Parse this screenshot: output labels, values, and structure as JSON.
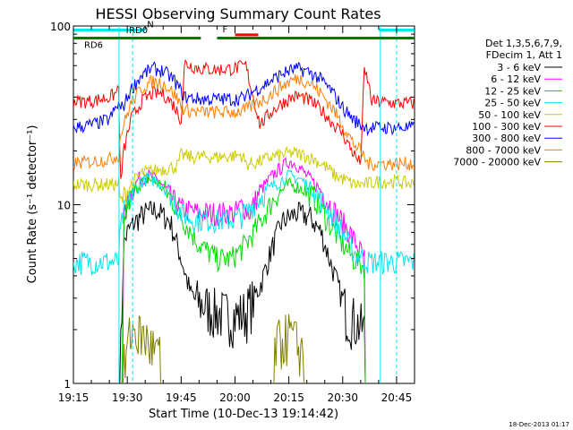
{
  "chart_data": {
    "type": "line",
    "title": "HESSI Observing Summary Count Rates",
    "xlabel": "Start Time (10-Dec-13 19:14:42)",
    "ylabel": "Count Rate (s⁻¹ detector⁻¹)",
    "yscale": "log",
    "xlim_minutes_after_1915": [
      0,
      95
    ],
    "ylim": [
      1,
      100
    ],
    "grid": false,
    "legend_position": "right",
    "x_tick_labels": [
      "19:15",
      "19:30",
      "19:45",
      "20:00",
      "20:15",
      "20:30",
      "20:45"
    ],
    "x_tick_minutes": [
      0,
      15,
      30,
      45,
      60,
      75,
      90
    ],
    "y_tick_labels": [
      "1",
      "10",
      "100"
    ],
    "y_tick_values": [
      1,
      10,
      100
    ],
    "legend_header": [
      "Det 1,3,5,6,7,9,",
      "FDecim 1, Att 1"
    ],
    "timestamp": "18-Dec-2013 01:17",
    "flags": [
      {
        "label": "N",
        "color": "#00e5ee",
        "y": 90,
        "segments": [
          [
            0,
            20
          ],
          [
            85,
            95
          ]
        ]
      },
      {
        "label": "RD6",
        "color": "#007a00",
        "y": 70,
        "segments": [
          [
            0,
            35.5
          ],
          [
            40,
            95
          ]
        ]
      },
      {
        "label": "RD0",
        "color": "#007a00",
        "y": 76
      },
      {
        "label": "F",
        "color": "#ff0000",
        "y": 78,
        "segments": [
          [
            45,
            51.5
          ]
        ]
      }
    ],
    "night_markers_minutes": [
      12.7,
      16.5,
      85.5,
      90
    ],
    "series": [
      {
        "name": "3 - 6 keV",
        "color": "#000000",
        "pts": [
          [
            0,
            0.01
          ],
          [
            12.5,
            0.01
          ],
          [
            13,
            1.1
          ],
          [
            14,
            6
          ],
          [
            15,
            7
          ],
          [
            17,
            8
          ],
          [
            20,
            9
          ],
          [
            23,
            9.4
          ],
          [
            27,
            8
          ],
          [
            30,
            5
          ],
          [
            33,
            3
          ],
          [
            40,
            2.5
          ],
          [
            45,
            2.4
          ],
          [
            48,
            2.5
          ],
          [
            52,
            3.5
          ],
          [
            55,
            5.5
          ],
          [
            58,
            8
          ],
          [
            62,
            9
          ],
          [
            66,
            8.5
          ],
          [
            69,
            7
          ],
          [
            72,
            4.5
          ],
          [
            76,
            2.5
          ],
          [
            81,
            2
          ],
          [
            82,
            0.01
          ],
          [
            95,
            0.01
          ]
        ]
      },
      {
        "name": "6 - 12 keV",
        "color": "#ff00ff",
        "pts": [
          [
            0,
            0.01
          ],
          [
            13,
            0.01
          ],
          [
            14,
            8
          ],
          [
            15,
            10
          ],
          [
            18,
            14
          ],
          [
            21,
            14.5
          ],
          [
            24,
            13.5
          ],
          [
            27,
            11
          ],
          [
            30,
            9.5
          ],
          [
            35,
            9
          ],
          [
            40,
            9
          ],
          [
            45,
            9
          ],
          [
            47,
            10
          ],
          [
            49,
            9
          ],
          [
            52,
            12
          ],
          [
            56,
            15
          ],
          [
            60,
            17.5
          ],
          [
            62,
            17
          ],
          [
            65,
            14.5
          ],
          [
            69,
            12
          ],
          [
            73,
            9
          ],
          [
            77,
            7
          ],
          [
            81,
            5
          ],
          [
            82,
            0.01
          ],
          [
            95,
            0.01
          ]
        ]
      },
      {
        "name": "12 - 25 keV",
        "color": "#00dd00",
        "pts": [
          [
            0,
            0.01
          ],
          [
            13,
            0.01
          ],
          [
            14,
            8
          ],
          [
            15,
            10
          ],
          [
            18,
            13
          ],
          [
            21,
            14
          ],
          [
            24,
            13
          ],
          [
            27,
            11
          ],
          [
            31,
            8
          ],
          [
            35,
            6
          ],
          [
            40,
            5
          ],
          [
            44,
            5
          ],
          [
            48,
            6
          ],
          [
            52,
            8
          ],
          [
            56,
            11
          ],
          [
            60,
            13
          ],
          [
            63,
            12.5
          ],
          [
            67,
            11
          ],
          [
            71,
            8
          ],
          [
            75,
            6
          ],
          [
            78,
            5
          ],
          [
            81,
            4.5
          ],
          [
            82,
            0.01
          ],
          [
            95,
            0.01
          ]
        ]
      },
      {
        "name": "25 - 50 keV",
        "color": "#00e5ee",
        "pts": [
          [
            0,
            4.8
          ],
          [
            10,
            4.8
          ],
          [
            12.7,
            4.8
          ],
          [
            13,
            7
          ],
          [
            14,
            9
          ],
          [
            16,
            11
          ],
          [
            19,
            13.5
          ],
          [
            21,
            14.2
          ],
          [
            24,
            13.3
          ],
          [
            27,
            11.5
          ],
          [
            30,
            9
          ],
          [
            33,
            8.3
          ],
          [
            40,
            8.2
          ],
          [
            45,
            8.3
          ],
          [
            48,
            9
          ],
          [
            52,
            11
          ],
          [
            56,
            13
          ],
          [
            60,
            14.5
          ],
          [
            63,
            14
          ],
          [
            67,
            12
          ],
          [
            71,
            9.5
          ],
          [
            75,
            7
          ],
          [
            78,
            5.5
          ],
          [
            81,
            5
          ],
          [
            82,
            4.8
          ],
          [
            95,
            4.8
          ]
        ]
      },
      {
        "name": "50 - 100 keV",
        "color": "#cccc00",
        "pts": [
          [
            0,
            13
          ],
          [
            11,
            13
          ],
          [
            12.7,
            13
          ],
          [
            13,
            10
          ],
          [
            14,
            11
          ],
          [
            16,
            13
          ],
          [
            19,
            15
          ],
          [
            22,
            15.5
          ],
          [
            26,
            16
          ],
          [
            29,
            16.5
          ],
          [
            30,
            19
          ],
          [
            33,
            18.5
          ],
          [
            40,
            18.5
          ],
          [
            45,
            18.8
          ],
          [
            47,
            19
          ],
          [
            48,
            17
          ],
          [
            50,
            17
          ],
          [
            52,
            17.5
          ],
          [
            55,
            18.5
          ],
          [
            58,
            19
          ],
          [
            61,
            19.5
          ],
          [
            64,
            19
          ],
          [
            67,
            18
          ],
          [
            70,
            16.5
          ],
          [
            73,
            14.5
          ],
          [
            75,
            14
          ],
          [
            78,
            13
          ],
          [
            81,
            13
          ],
          [
            85,
            13.5
          ],
          [
            90,
            13.5
          ],
          [
            95,
            13
          ]
        ]
      },
      {
        "name": "100 - 300 keV",
        "color": "#ff0000",
        "pts": [
          [
            0,
            38
          ],
          [
            5,
            38
          ],
          [
            10,
            40
          ],
          [
            12,
            42
          ],
          [
            12.7,
            50
          ],
          [
            13,
            12
          ],
          [
            14,
            20
          ],
          [
            16,
            30
          ],
          [
            19,
            38
          ],
          [
            22,
            42
          ],
          [
            25,
            42
          ],
          [
            28,
            36
          ],
          [
            30,
            30
          ],
          [
            31,
            62
          ],
          [
            35,
            58
          ],
          [
            40,
            57
          ],
          [
            45,
            58
          ],
          [
            48,
            60
          ],
          [
            52,
            28
          ],
          [
            55,
            33
          ],
          [
            58,
            37
          ],
          [
            61,
            40
          ],
          [
            63,
            40.5
          ],
          [
            66,
            38
          ],
          [
            69,
            34
          ],
          [
            72,
            29
          ],
          [
            75,
            25
          ],
          [
            77,
            21
          ],
          [
            79,
            18
          ],
          [
            80,
            17
          ],
          [
            81,
            55
          ],
          [
            82,
            50
          ],
          [
            83,
            38
          ],
          [
            90,
            37
          ],
          [
            95,
            37
          ]
        ]
      },
      {
        "name": "300 - 800 keV",
        "color": "#0000ff",
        "pts": [
          [
            0,
            27
          ],
          [
            5,
            28
          ],
          [
            10,
            30
          ],
          [
            12.7,
            37
          ],
          [
            13,
            34
          ],
          [
            14,
            36
          ],
          [
            16,
            44
          ],
          [
            19,
            53
          ],
          [
            22,
            58
          ],
          [
            25,
            56
          ],
          [
            28,
            50
          ],
          [
            30,
            43
          ],
          [
            31,
            40
          ],
          [
            35,
            39
          ],
          [
            40,
            39
          ],
          [
            45,
            39
          ],
          [
            48,
            40
          ],
          [
            50,
            43
          ],
          [
            54,
            48
          ],
          [
            58,
            54
          ],
          [
            61,
            57
          ],
          [
            63,
            57.5
          ],
          [
            66,
            55
          ],
          [
            69,
            50
          ],
          [
            72,
            43
          ],
          [
            75,
            35
          ],
          [
            78,
            30
          ],
          [
            80,
            28
          ],
          [
            82,
            27
          ],
          [
            90,
            27
          ],
          [
            95,
            27
          ]
        ]
      },
      {
        "name": "800 - 7000 keV",
        "color": "#ff8000",
        "pts": [
          [
            0,
            17
          ],
          [
            10,
            18
          ],
          [
            12.7,
            19
          ],
          [
            13,
            24
          ],
          [
            14,
            28
          ],
          [
            16,
            37
          ],
          [
            19,
            45
          ],
          [
            22,
            49
          ],
          [
            25,
            48
          ],
          [
            28,
            42
          ],
          [
            30,
            36
          ],
          [
            31,
            34
          ],
          [
            35,
            33
          ],
          [
            40,
            33
          ],
          [
            45,
            33
          ],
          [
            48,
            34
          ],
          [
            50,
            36
          ],
          [
            54,
            40
          ],
          [
            58,
            46
          ],
          [
            61,
            50
          ],
          [
            63,
            51
          ],
          [
            66,
            48
          ],
          [
            69,
            42
          ],
          [
            72,
            35
          ],
          [
            75,
            28
          ],
          [
            78,
            22
          ],
          [
            80,
            20
          ],
          [
            82,
            17
          ],
          [
            90,
            17
          ],
          [
            95,
            17
          ]
        ]
      },
      {
        "name": "7000 - 20000 keV",
        "color": "#808000",
        "pts": [
          [
            0,
            0.01
          ],
          [
            12,
            0.01
          ],
          [
            12.5,
            2
          ],
          [
            13,
            0.01
          ],
          [
            14,
            1.2
          ],
          [
            16,
            2
          ],
          [
            20,
            1.8
          ],
          [
            24,
            1.4
          ],
          [
            27,
            0.01
          ],
          [
            55,
            0.01
          ],
          [
            56,
            1.6
          ],
          [
            60,
            1.9
          ],
          [
            64,
            1.5
          ],
          [
            67,
            0.01
          ],
          [
            95,
            0.01
          ]
        ]
      }
    ]
  }
}
